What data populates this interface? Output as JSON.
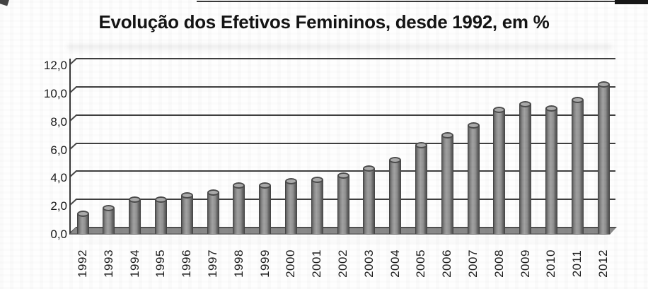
{
  "chart_data": {
    "type": "bar",
    "subtype": "3d-cylinder",
    "title": "Evolução dos Efetivos Femininos, desde 1992, em %",
    "categories": [
      "1992",
      "1993",
      "1994",
      "1995",
      "1996",
      "1997",
      "1998",
      "1999",
      "2000",
      "2001",
      "2002",
      "2003",
      "2004",
      "2005",
      "2006",
      "2007",
      "2008",
      "2009",
      "2010",
      "2011",
      "2012"
    ],
    "values": [
      1.0,
      1.4,
      2.0,
      2.0,
      2.3,
      2.5,
      3.0,
      3.0,
      3.3,
      3.4,
      3.7,
      4.2,
      4.8,
      5.9,
      6.6,
      7.3,
      8.4,
      8.8,
      8.5,
      9.1,
      10.2
    ],
    "xlabel": "",
    "ylabel": "",
    "ylim": [
      0,
      12
    ],
    "ytick_step": 2,
    "ytick_labels": [
      "0,0",
      "2,0",
      "4,0",
      "6,0",
      "8,0",
      "10,0",
      "12,0"
    ],
    "decimal_separator": ",",
    "grid": true,
    "legend": false,
    "bar_color": "#8f8f8f",
    "gridline_color": "#3f3f3f",
    "text_color": "#1a1a1a",
    "background_color": "#fefefe"
  }
}
